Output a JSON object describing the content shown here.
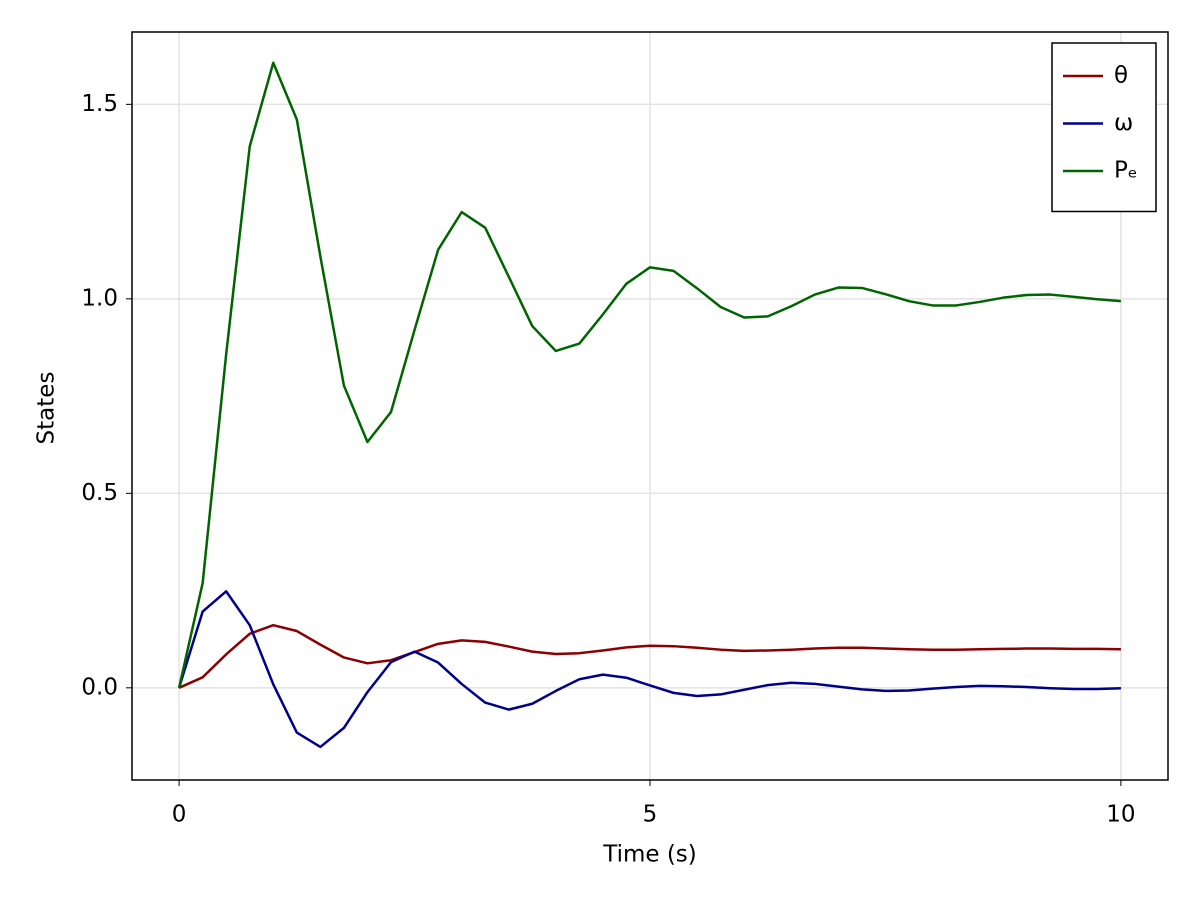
{
  "chart_data": {
    "type": "line",
    "xlabel": "Time (s)",
    "ylabel": "States",
    "x": [
      0,
      0.25,
      0.5,
      0.75,
      1,
      1.25,
      1.5,
      1.75,
      2,
      2.25,
      2.5,
      2.75,
      3,
      3.25,
      3.5,
      3.75,
      4,
      4.25,
      4.5,
      4.75,
      5,
      5.25,
      5.5,
      5.75,
      6,
      6.25,
      6.5,
      6.75,
      7,
      7.25,
      7.5,
      7.75,
      8,
      8.25,
      8.5,
      8.75,
      9,
      9.25,
      9.5,
      9.75,
      10
    ],
    "series": [
      {
        "name": "θ",
        "color": "#8b0000",
        "values": [
          0,
          0.027,
          0.086,
          0.139,
          0.161,
          0.146,
          0.111,
          0.078,
          0.063,
          0.071,
          0.092,
          0.113,
          0.122,
          0.118,
          0.106,
          0.093,
          0.087,
          0.089,
          0.096,
          0.104,
          0.108,
          0.107,
          0.103,
          0.098,
          0.095,
          0.096,
          0.098,
          0.101,
          0.103,
          0.103,
          0.101,
          0.099,
          0.098,
          0.098,
          0.099,
          0.1,
          0.101,
          0.101,
          0.1,
          0.1,
          0.099
        ]
      },
      {
        "name": "ω",
        "color": "#00008b",
        "values": [
          0,
          0.196,
          0.248,
          0.161,
          0.009,
          -0.115,
          -0.152,
          -0.103,
          -0.011,
          0.066,
          0.093,
          0.065,
          0.01,
          -0.038,
          -0.056,
          -0.041,
          -0.008,
          0.022,
          0.034,
          0.026,
          0.006,
          -0.013,
          -0.021,
          -0.017,
          -0.005,
          0.007,
          0.013,
          0.01,
          0.003,
          -0.004,
          -0.008,
          -0.007,
          -0.002,
          0.002,
          0.005,
          0.004,
          0.002,
          -0.001,
          -0.003,
          -0.003,
          -0.001
        ]
      },
      {
        "name": "Pₑ",
        "color": "#006400",
        "values": [
          0,
          0.269,
          0.858,
          1.392,
          1.607,
          1.461,
          1.109,
          0.777,
          0.632,
          0.709,
          0.92,
          1.126,
          1.223,
          1.183,
          1.057,
          0.93,
          0.866,
          0.885,
          0.96,
          1.039,
          1.081,
          1.072,
          1.027,
          0.979,
          0.952,
          0.955,
          0.981,
          1.011,
          1.029,
          1.028,
          1.012,
          0.994,
          0.983,
          0.983,
          0.992,
          1.003,
          1.01,
          1.011,
          1.005,
          0.999,
          0.994
        ]
      }
    ],
    "xlim": [
      -0.5,
      10.5
    ],
    "ylim": [
      -0.237,
      1.686
    ],
    "xticks": [
      0,
      5,
      10
    ],
    "yticks": [
      {
        "value": 0,
        "label": "0.0"
      },
      0.5,
      {
        "value": 1,
        "label": "1.0"
      },
      1.5
    ],
    "grid": true,
    "legend": "top-right"
  }
}
